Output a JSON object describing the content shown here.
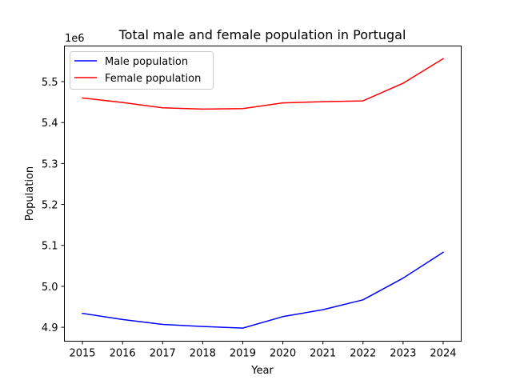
{
  "chart_data": {
    "type": "line",
    "title": "Total male and female population in Portugal",
    "xlabel": "Year",
    "ylabel": "Population",
    "y_offset_label": "1e6",
    "x": [
      2015,
      2016,
      2017,
      2018,
      2019,
      2020,
      2021,
      2022,
      2023,
      2024
    ],
    "x_ticks": [
      "2015",
      "2016",
      "2017",
      "2018",
      "2019",
      "2020",
      "2021",
      "2022",
      "2023",
      "2024"
    ],
    "y_ticks": [
      4.9,
      5.0,
      5.1,
      5.2,
      5.3,
      5.4,
      5.5
    ],
    "y_tick_labels": [
      "4.9",
      "5.0",
      "5.1",
      "5.2",
      "5.3",
      "5.4",
      "5.5"
    ],
    "y_scale": 1000000,
    "xlim": [
      2014.55,
      2024.45
    ],
    "ylim": [
      4866000,
      5587000
    ],
    "legend_position": "upper-left",
    "grid": false,
    "series": [
      {
        "name": "Male population",
        "color": "#0000ff",
        "values": [
          4934000,
          4919000,
          4907000,
          4902000,
          4898000,
          4926000,
          4943000,
          4967000,
          5020000,
          5083000
        ]
      },
      {
        "name": "Female population",
        "color": "#ff0000",
        "values": [
          5460000,
          5449000,
          5436000,
          5433000,
          5434000,
          5448000,
          5451000,
          5453000,
          5496000,
          5556000
        ]
      }
    ]
  }
}
